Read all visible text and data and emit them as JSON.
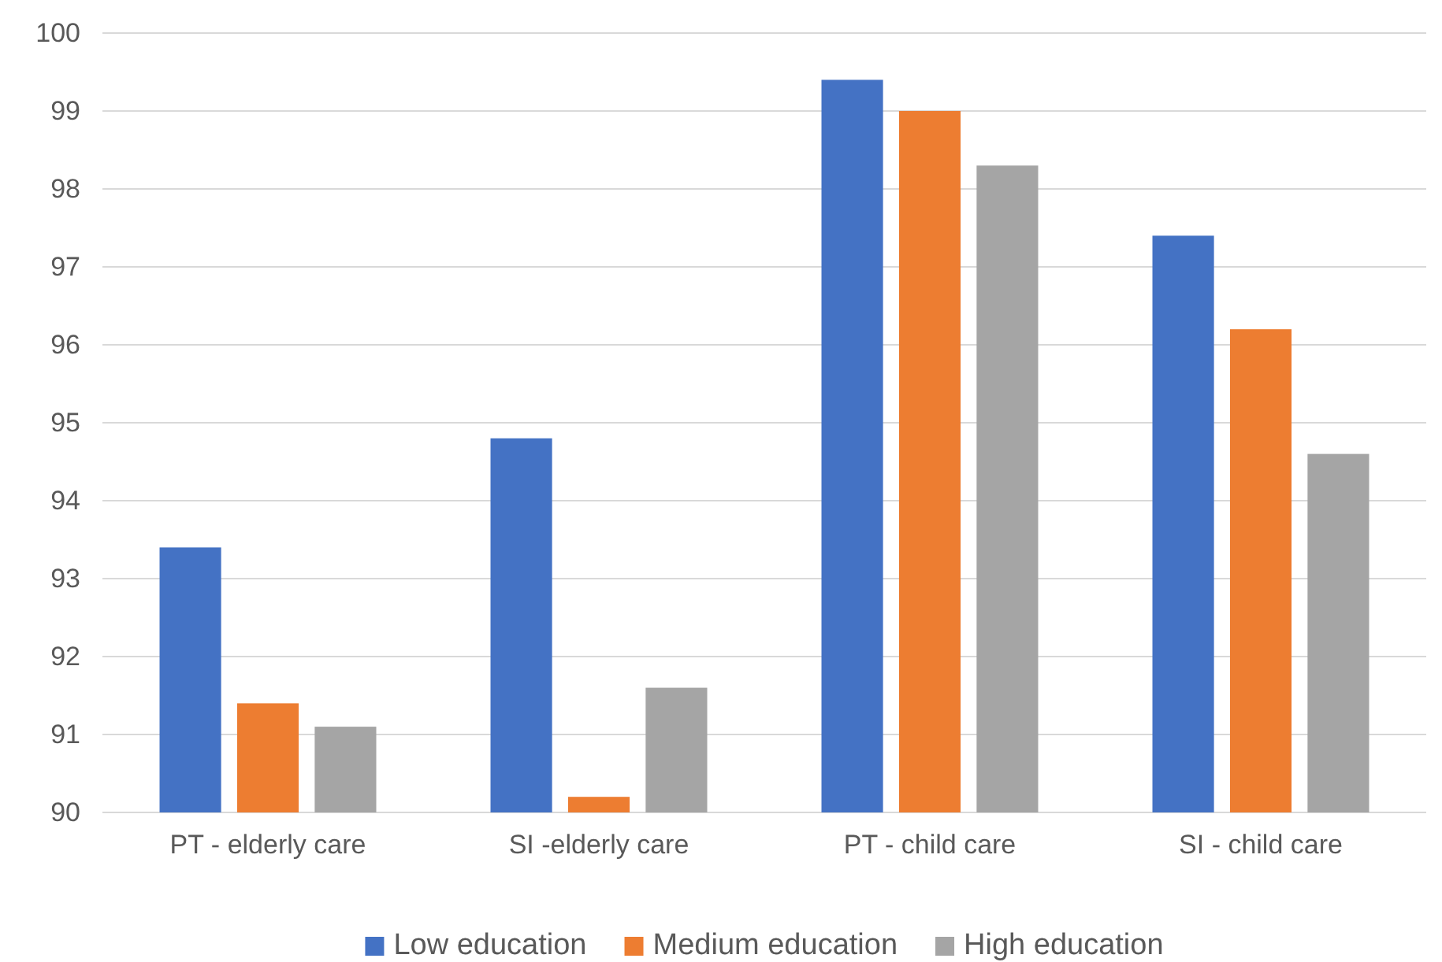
{
  "chart_data": {
    "type": "bar",
    "categories": [
      "PT - elderly care",
      "SI -elderly care",
      "PT - child care",
      "SI - child care"
    ],
    "series": [
      {
        "name": "Low education",
        "color": "#4472c4",
        "values": [
          93.4,
          94.8,
          99.4,
          97.4
        ]
      },
      {
        "name": "Medium education",
        "color": "#ed7d31",
        "values": [
          91.4,
          90.2,
          99.0,
          96.2
        ]
      },
      {
        "name": "High education",
        "color": "#a5a5a5",
        "values": [
          91.1,
          91.6,
          98.3,
          94.6
        ]
      }
    ],
    "ylim": [
      90,
      100
    ],
    "yticks": [
      90,
      91,
      92,
      93,
      94,
      95,
      96,
      97,
      98,
      99,
      100
    ],
    "grid": "y",
    "legend": "bottom"
  }
}
